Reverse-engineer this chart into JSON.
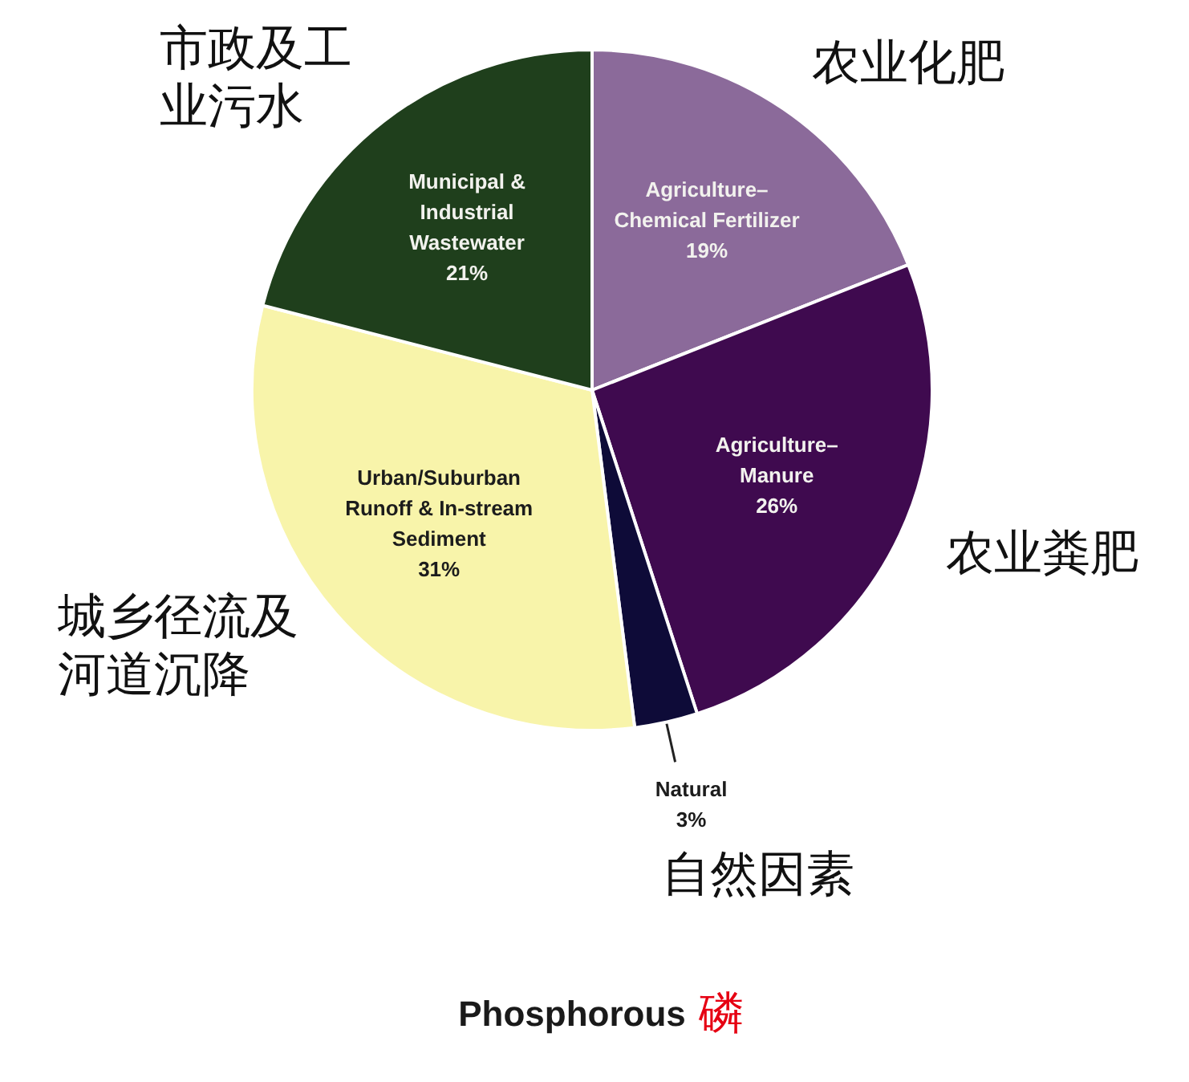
{
  "chart_data": {
    "type": "pie",
    "title": "Phosphorous 磷",
    "categories": [
      "Agriculture–Chemical Fertilizer",
      "Agriculture–Manure",
      "Natural",
      "Urban/Suburban Runoff & In-stream Sediment",
      "Municipal & Industrial Wastewater"
    ],
    "values": [
      19,
      26,
      3,
      31,
      21
    ],
    "colors": [
      "#8b6a9a",
      "#3f0a4f",
      "#0e0b38",
      "#f8f4aa",
      "#1f3f1c"
    ],
    "value_labels": [
      "19%",
      "26%",
      "3%",
      "31%",
      "21%"
    ],
    "annotations": [
      "农业化肥",
      "农业粪肥",
      "自然因素",
      "城乡径流及河道沉降",
      "市政及工业污水"
    ],
    "legend": false
  }
}
